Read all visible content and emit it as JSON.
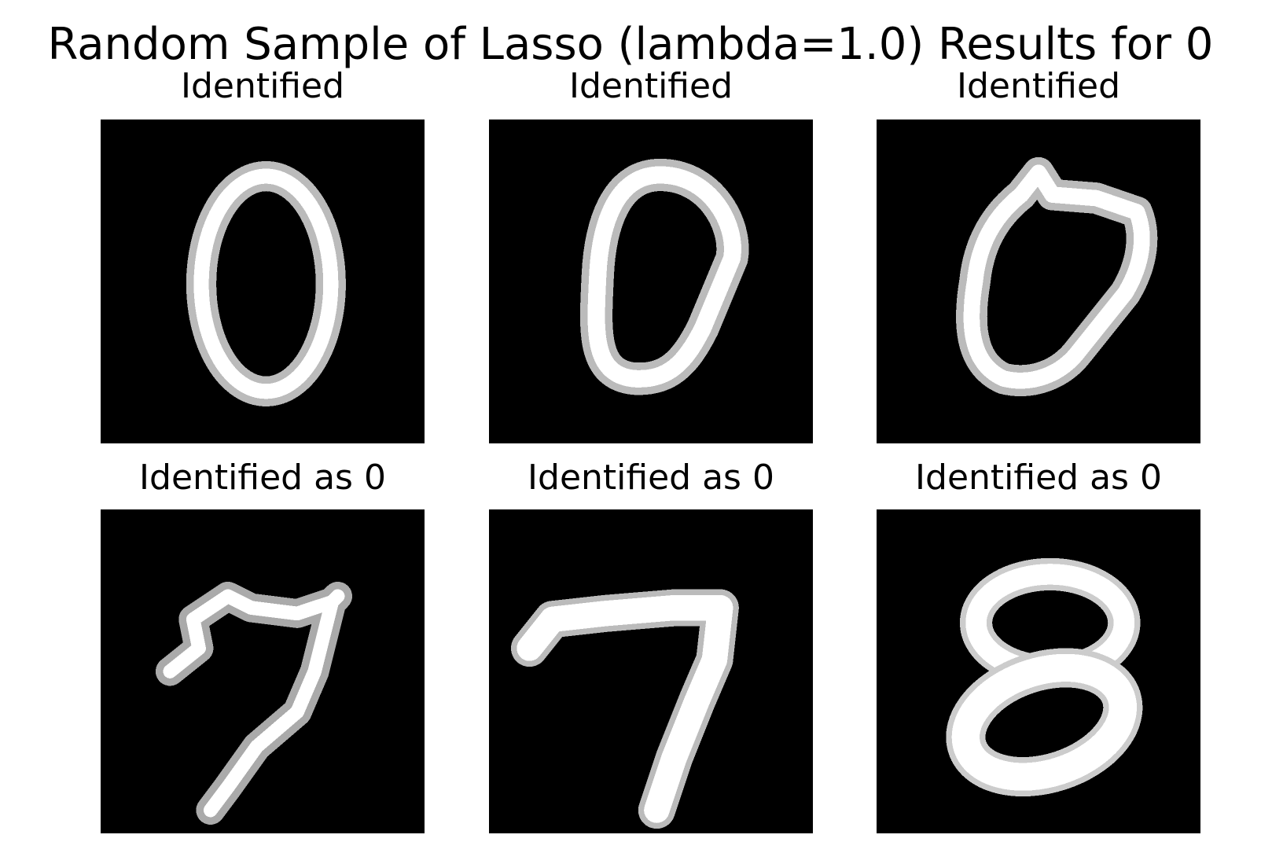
{
  "figure": {
    "title": "Random Sample of Lasso (lambda=1.0) Results for 0"
  },
  "panels": [
    {
      "title": "Identified",
      "digit_icon": "digit-0-icon"
    },
    {
      "title": "Identified",
      "digit_icon": "digit-0-icon"
    },
    {
      "title": "Identified",
      "digit_icon": "digit-0-icon"
    },
    {
      "title": "Identified as 0",
      "digit_icon": "digit-7-icon"
    },
    {
      "title": "Identified as 0",
      "digit_icon": "digit-7-icon"
    },
    {
      "title": "Identified as 0",
      "digit_icon": "digit-8-icon"
    }
  ],
  "colors": {
    "background": "#000000",
    "stroke": "#ffffff"
  }
}
